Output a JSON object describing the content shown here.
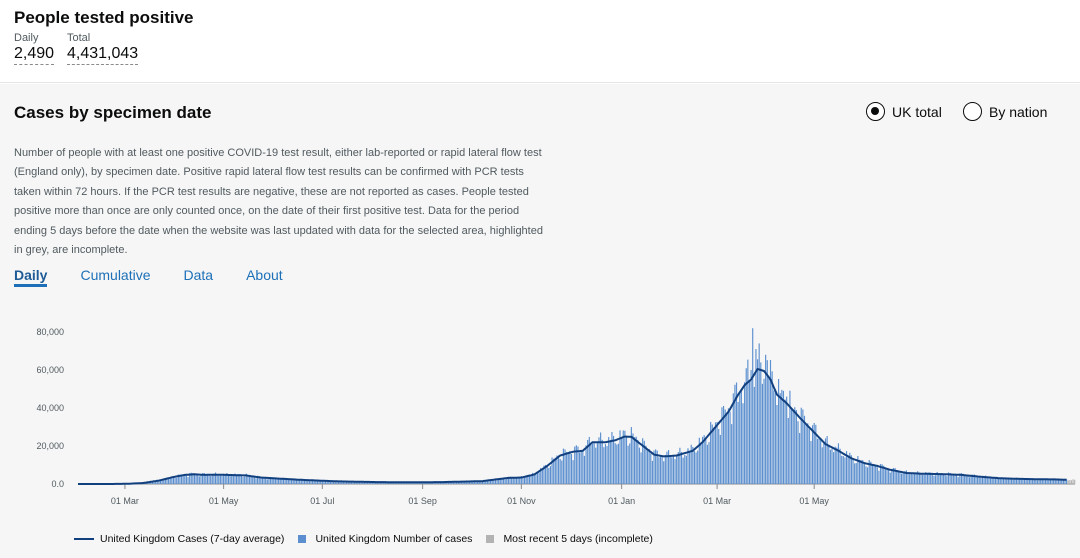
{
  "header": {
    "title": "People tested positive",
    "daily_label": "Daily",
    "daily_value": "2,490",
    "total_label": "Total",
    "total_value": "4,431,043"
  },
  "card": {
    "heading": "Cases by specimen date",
    "radio_uk": "UK total",
    "radio_nation": "By nation",
    "description": "Number of people with at least one positive COVID-19 test result, either lab-reported or rapid lateral flow test (England only), by specimen date. Positive rapid lateral flow test results can be confirmed with PCR tests taken within 72 hours. If the PCR test results are negative, these are not reported as cases. People tested positive more than once are only counted once, on the date of their first positive test. Data for the period ending 5 days before the date when the website was last updated with data for the selected area, highlighted in grey, are incomplete.",
    "tabs": [
      {
        "label": "Daily",
        "active": true
      },
      {
        "label": "Cumulative",
        "active": false
      },
      {
        "label": "Data",
        "active": false
      },
      {
        "label": "About",
        "active": false
      }
    ]
  },
  "legend": {
    "line": "United Kingdom Cases (7-day average)",
    "bars": "United Kingdom Number of cases",
    "incomplete": "Most recent 5 days (incomplete)"
  },
  "colors": {
    "bar": "#5b8fcf",
    "line": "#12407f",
    "incomplete": "#b3b3b3"
  },
  "chart_data": {
    "type": "bar",
    "x_tick_labels": [
      "01 Mar",
      "01 May",
      "01 Jul",
      "01 Sep",
      "01 Nov",
      "01 Jan",
      "01 Mar",
      "01 May"
    ],
    "y_tick_labels": [
      "0.0",
      "20,000",
      "40,000",
      "60,000",
      "80,000"
    ],
    "ylim": [
      0,
      85000
    ],
    "x_unit": "days since 2020-01-31",
    "seven_day_average": [
      [
        0,
        0
      ],
      [
        20,
        0
      ],
      [
        30,
        100
      ],
      [
        40,
        500
      ],
      [
        50,
        1800
      ],
      [
        58,
        3500
      ],
      [
        66,
        4800
      ],
      [
        72,
        5100
      ],
      [
        78,
        4800
      ],
      [
        86,
        4900
      ],
      [
        96,
        4700
      ],
      [
        104,
        4500
      ],
      [
        112,
        3500
      ],
      [
        125,
        2800
      ],
      [
        140,
        2100
      ],
      [
        160,
        1400
      ],
      [
        185,
        1000
      ],
      [
        205,
        900
      ],
      [
        225,
        1000
      ],
      [
        240,
        1300
      ],
      [
        250,
        1500
      ],
      [
        258,
        2400
      ],
      [
        266,
        3200
      ],
      [
        274,
        3400
      ],
      [
        282,
        5000
      ],
      [
        290,
        9500
      ],
      [
        298,
        15000
      ],
      [
        306,
        17000
      ],
      [
        312,
        17500
      ],
      [
        318,
        22000
      ],
      [
        326,
        22000
      ],
      [
        332,
        23000
      ],
      [
        338,
        25000
      ],
      [
        342,
        24800
      ],
      [
        350,
        19500
      ],
      [
        356,
        15500
      ],
      [
        362,
        14500
      ],
      [
        370,
        15000
      ],
      [
        380,
        17500
      ],
      [
        386,
        22000
      ],
      [
        394,
        30000
      ],
      [
        402,
        38000
      ],
      [
        408,
        47000
      ],
      [
        412,
        52000
      ],
      [
        416,
        55000
      ],
      [
        420,
        60500
      ],
      [
        424,
        59500
      ],
      [
        428,
        55000
      ],
      [
        432,
        47000
      ],
      [
        438,
        42500
      ],
      [
        446,
        35000
      ],
      [
        454,
        28000
      ],
      [
        462,
        21000
      ],
      [
        470,
        17500
      ],
      [
        478,
        13500
      ],
      [
        486,
        11000
      ],
      [
        494,
        9500
      ],
      [
        502,
        7500
      ],
      [
        512,
        5800
      ],
      [
        522,
        5400
      ],
      [
        534,
        5200
      ],
      [
        546,
        4800
      ],
      [
        558,
        3800
      ],
      [
        570,
        3000
      ],
      [
        582,
        2700
      ],
      [
        594,
        2500
      ],
      [
        604,
        2400
      ],
      [
        612,
        2200
      ]
    ],
    "daily_amplitude": [
      [
        0,
        0
      ],
      [
        20,
        0
      ],
      [
        30,
        100
      ],
      [
        40,
        500
      ],
      [
        50,
        1800
      ],
      [
        58,
        3500
      ],
      [
        66,
        4800
      ],
      [
        72,
        5100
      ],
      [
        78,
        4800
      ],
      [
        86,
        4900
      ],
      [
        96,
        4700
      ],
      [
        104,
        4500
      ],
      [
        112,
        3500
      ],
      [
        125,
        2800
      ],
      [
        140,
        2100
      ],
      [
        160,
        1400
      ],
      [
        185,
        1000
      ],
      [
        205,
        900
      ],
      [
        225,
        1000
      ],
      [
        240,
        1300
      ],
      [
        250,
        1500
      ],
      [
        258,
        2400
      ],
      [
        266,
        3200
      ],
      [
        274,
        3400
      ],
      [
        282,
        5000
      ],
      [
        290,
        9500
      ],
      [
        298,
        15000
      ],
      [
        306,
        17000
      ],
      [
        312,
        17500
      ],
      [
        318,
        22000
      ],
      [
        326,
        22000
      ],
      [
        332,
        23000
      ],
      [
        338,
        25000
      ],
      [
        342,
        24800
      ],
      [
        350,
        19500
      ],
      [
        356,
        15500
      ],
      [
        362,
        14500
      ],
      [
        370,
        15000
      ],
      [
        380,
        17500
      ],
      [
        386,
        22000
      ],
      [
        394,
        30000
      ],
      [
        402,
        38000
      ],
      [
        408,
        47000
      ],
      [
        412,
        52000
      ],
      [
        416,
        55000
      ],
      [
        420,
        60500
      ],
      [
        424,
        59500
      ],
      [
        428,
        55000
      ],
      [
        432,
        47000
      ],
      [
        438,
        42500
      ],
      [
        446,
        35000
      ],
      [
        454,
        28000
      ],
      [
        462,
        21000
      ],
      [
        470,
        17500
      ],
      [
        478,
        13500
      ],
      [
        486,
        11000
      ],
      [
        494,
        9500
      ],
      [
        502,
        7500
      ],
      [
        512,
        5800
      ],
      [
        522,
        5400
      ],
      [
        534,
        5200
      ],
      [
        546,
        4800
      ],
      [
        558,
        3800
      ],
      [
        570,
        3000
      ],
      [
        582,
        2700
      ],
      [
        594,
        2500
      ],
      [
        604,
        2400
      ],
      [
        612,
        2200
      ]
    ],
    "spikes": [
      [
        417,
        82000
      ],
      [
        419,
        71000
      ],
      [
        422,
        64000
      ],
      [
        425,
        68000
      ],
      [
        431,
        48000
      ],
      [
        438,
        46000
      ],
      [
        441,
        40000
      ],
      [
        416,
        60000
      ]
    ],
    "incomplete_days": 5,
    "grid": false,
    "legend_position": "bottom"
  }
}
